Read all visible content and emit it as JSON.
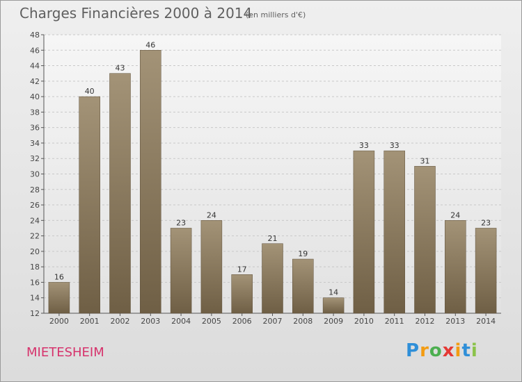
{
  "chart_data": {
    "type": "bar",
    "title": "Charges Financières 2000 à 2014",
    "subtitle": "(en milliers d'€)",
    "categories": [
      "2000",
      "2001",
      "2002",
      "2003",
      "2004",
      "2005",
      "2006",
      "2007",
      "2008",
      "2009",
      "2010",
      "2011",
      "2012",
      "2013",
      "2014"
    ],
    "values": [
      16,
      40,
      43,
      46,
      23,
      24,
      17,
      21,
      19,
      14,
      33,
      33,
      31,
      24,
      23
    ],
    "ylim": [
      12,
      48
    ],
    "ytick_step": 2,
    "grid": true,
    "bar_color": "#8b7b61",
    "xlabel": "",
    "ylabel": ""
  },
  "footer": {
    "commune": "MIETESHEIM",
    "logo": {
      "letters": [
        "P",
        "r",
        "o",
        "x",
        "i",
        "t",
        "i"
      ],
      "colors": [
        "#2f8fd8",
        "#f39c12",
        "#4caf50",
        "#e53935",
        "#f39c12",
        "#2f8fd8",
        "#8bc34a"
      ]
    }
  }
}
